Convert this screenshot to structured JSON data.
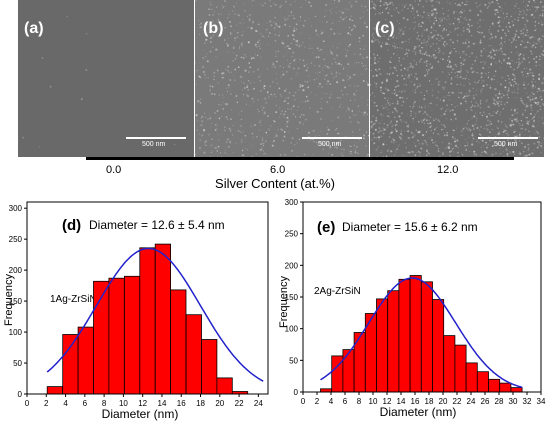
{
  "sem_panels": [
    {
      "letter": "(a)",
      "scale": "500 nm",
      "bg": "#696969",
      "density": 10
    },
    {
      "letter": "(b)",
      "scale": "500 nm",
      "bg": "#7a7a7a",
      "density": 900
    },
    {
      "letter": "(c)",
      "scale": "500 nm",
      "bg": "#6e6e6e",
      "density": 1700
    }
  ],
  "silver_axis": {
    "title": "Silver Content (at.%)",
    "ticks": [
      "0.0",
      "6.0",
      "12.0"
    ]
  },
  "chart_data": [
    {
      "type": "bar",
      "panel_label": "(d)",
      "annotation": "Diameter = 12.6 ± 5.4 nm",
      "legend": "1Ag-ZrSiN",
      "xlabel": "Diameter (nm)",
      "ylabel": "Frequency",
      "xlim": [
        0,
        25
      ],
      "ylim": [
        0,
        310
      ],
      "xticks": [
        0,
        2,
        4,
        6,
        8,
        10,
        12,
        14,
        16,
        18,
        20,
        22,
        24
      ],
      "yticks": [
        0,
        50,
        100,
        150,
        200,
        250,
        300
      ],
      "bin_width": 1.6,
      "bin_starts": [
        2.1,
        3.7,
        5.3,
        6.9,
        8.5,
        10.1,
        11.7,
        13.3,
        14.9,
        16.5,
        18.1,
        19.7,
        21.3,
        22.9
      ],
      "values": [
        12,
        96,
        108,
        182,
        187,
        190,
        236,
        242,
        168,
        128,
        88,
        26,
        4,
        0
      ],
      "fit": {
        "mean": 12.6,
        "sigma": 5.4,
        "peak": 235
      },
      "bar_color": "#ff0000",
      "fit_color": "#2222cc"
    },
    {
      "type": "bar",
      "panel_label": "(e)",
      "annotation": "Diameter = 15.6 ± 6.2 nm",
      "legend": "2Ag-ZrSiN",
      "xlabel": "Diameter (nm)",
      "ylabel": "Frequency",
      "xlim": [
        0,
        34
      ],
      "ylim": [
        0,
        300
      ],
      "xticks": [
        0,
        2,
        4,
        6,
        8,
        10,
        12,
        14,
        16,
        18,
        20,
        22,
        24,
        26,
        28,
        30,
        32,
        34
      ],
      "yticks": [
        0,
        50,
        100,
        150,
        200,
        250,
        300
      ],
      "bin_width": 1.6,
      "bin_starts": [
        2.5,
        4.1,
        5.7,
        7.3,
        8.9,
        10.5,
        12.1,
        13.7,
        15.3,
        16.9,
        18.5,
        20.1,
        21.7,
        23.3,
        24.9,
        26.5,
        28.1,
        29.7
      ],
      "values": [
        5,
        57,
        67,
        94,
        124,
        147,
        160,
        178,
        184,
        174,
        146,
        89,
        74,
        46,
        32,
        20,
        14,
        7
      ],
      "fit": {
        "mean": 15.6,
        "sigma": 6.2,
        "peak": 180
      },
      "bar_color": "#ff0000",
      "fit_color": "#2222cc"
    }
  ]
}
